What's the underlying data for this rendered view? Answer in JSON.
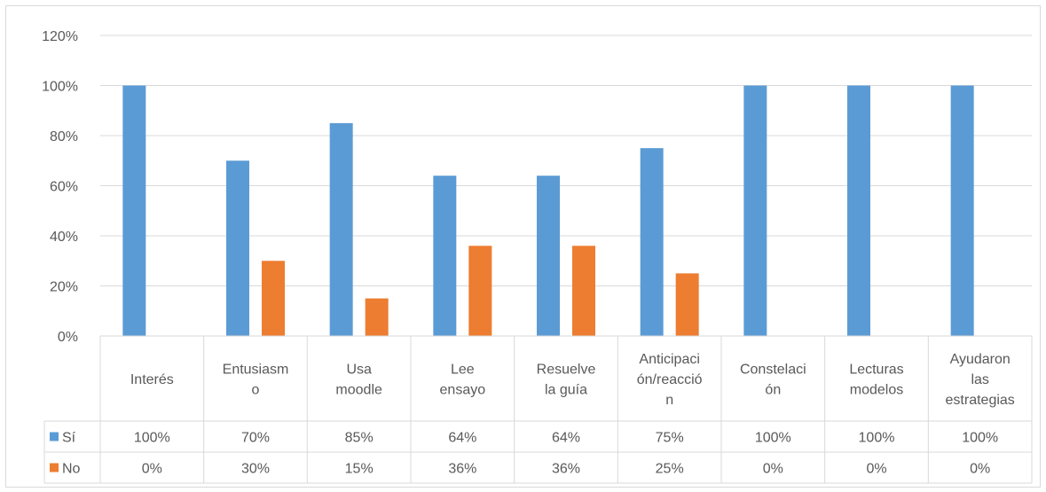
{
  "chart_data": {
    "type": "bar",
    "categories": [
      [
        "Interés"
      ],
      [
        "Entusiasm",
        "o"
      ],
      [
        "Usa",
        "moodle"
      ],
      [
        "Lee",
        "ensayo"
      ],
      [
        "Resuelve",
        "la guía"
      ],
      [
        "Anticipaci",
        "ón/reacció",
        "n"
      ],
      [
        "Constelaci",
        "ón"
      ],
      [
        "Lecturas",
        "modelos"
      ],
      [
        "Ayudaron",
        "las",
        "estrategias"
      ]
    ],
    "series": [
      {
        "name": "Sí",
        "color": "#5b9bd5",
        "values": [
          100,
          70,
          85,
          64,
          64,
          75,
          100,
          100,
          100
        ],
        "labels": [
          "100%",
          "70%",
          "85%",
          "64%",
          "64%",
          "75%",
          "100%",
          "100%",
          "100%"
        ]
      },
      {
        "name": "No",
        "color": "#ed7d31",
        "values": [
          0,
          30,
          15,
          36,
          36,
          25,
          0,
          0,
          0
        ],
        "labels": [
          "0%",
          "30%",
          "15%",
          "36%",
          "36%",
          "25%",
          "0%",
          "0%",
          "0%"
        ]
      }
    ],
    "ylim": [
      0,
      120
    ],
    "yticks": [
      0,
      20,
      40,
      60,
      80,
      100,
      120
    ],
    "ytick_labels": [
      "0%",
      "20%",
      "40%",
      "60%",
      "80%",
      "100%",
      "120%"
    ],
    "grid": true,
    "data_table": true,
    "legend": "data-table"
  }
}
